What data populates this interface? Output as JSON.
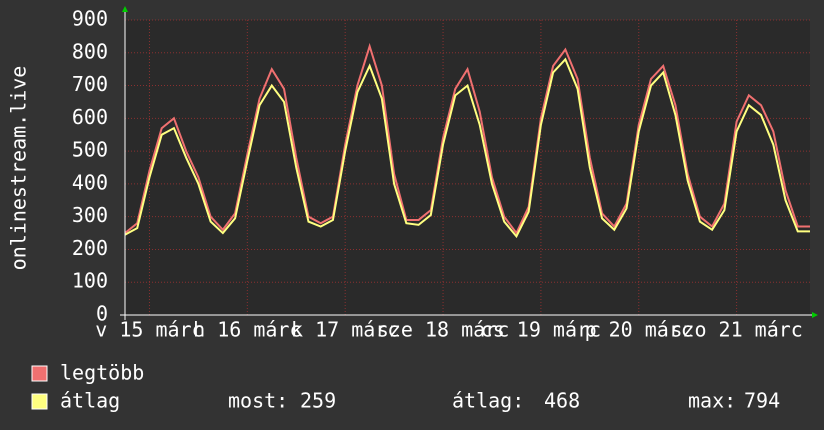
{
  "chart_data": {
    "type": "line",
    "y_label": "onlinestream.live",
    "x": [
      0,
      3,
      6,
      9,
      12,
      15,
      18,
      21,
      24,
      27,
      30,
      33,
      36,
      39,
      42,
      45,
      48,
      51,
      54,
      57,
      60,
      63,
      66,
      69,
      72,
      75,
      78,
      81,
      84,
      87,
      90,
      93,
      96,
      99,
      102,
      105,
      108,
      111,
      114,
      117,
      120,
      123,
      126,
      129,
      132,
      135,
      138,
      141,
      144,
      147,
      150,
      153,
      156,
      159,
      162,
      165,
      168
    ],
    "xlim": [
      0,
      168
    ],
    "xticks": [
      {
        "value": 6,
        "label": "v 15 márc"
      },
      {
        "value": 30,
        "label": "h 16 márc"
      },
      {
        "value": 54,
        "label": "k 17 márc"
      },
      {
        "value": 78,
        "label": "sze 18 márc"
      },
      {
        "value": 102,
        "label": "cs 19 márc"
      },
      {
        "value": 126,
        "label": "p 20 márc"
      },
      {
        "value": 150,
        "label": "szo 21 márc"
      }
    ],
    "ylim": [
      0,
      900
    ],
    "yticks": [
      0,
      100,
      200,
      300,
      400,
      500,
      600,
      700,
      800,
      900
    ],
    "grid": true,
    "series": [
      {
        "name": "legtöbb",
        "color": "#f07070",
        "values": [
          250,
          280,
          440,
          570,
          600,
          500,
          420,
          300,
          260,
          310,
          490,
          660,
          750,
          690,
          480,
          300,
          280,
          300,
          520,
          700,
          820,
          700,
          430,
          290,
          290,
          320,
          540,
          690,
          750,
          620,
          420,
          300,
          250,
          330,
          600,
          760,
          810,
          720,
          480,
          310,
          270,
          340,
          580,
          720,
          760,
          640,
          430,
          300,
          270,
          340,
          590,
          670,
          640,
          560,
          380,
          270,
          270
        ]
      },
      {
        "name": "átlag",
        "color": "#ffff80",
        "values": [
          245,
          265,
          420,
          550,
          570,
          480,
          400,
          285,
          250,
          295,
          470,
          640,
          700,
          650,
          450,
          285,
          270,
          290,
          500,
          680,
          760,
          660,
          400,
          280,
          275,
          305,
          520,
          670,
          700,
          580,
          400,
          285,
          240,
          315,
          580,
          740,
          780,
          690,
          450,
          295,
          260,
          325,
          560,
          700,
          740,
          610,
          410,
          285,
          260,
          320,
          560,
          640,
          610,
          520,
          350,
          255,
          255
        ]
      }
    ],
    "stats": [
      {
        "label": "most:",
        "value": 259
      },
      {
        "label": "átlag:",
        "value": 468
      },
      {
        "label": "max:",
        "value": 794
      }
    ]
  }
}
